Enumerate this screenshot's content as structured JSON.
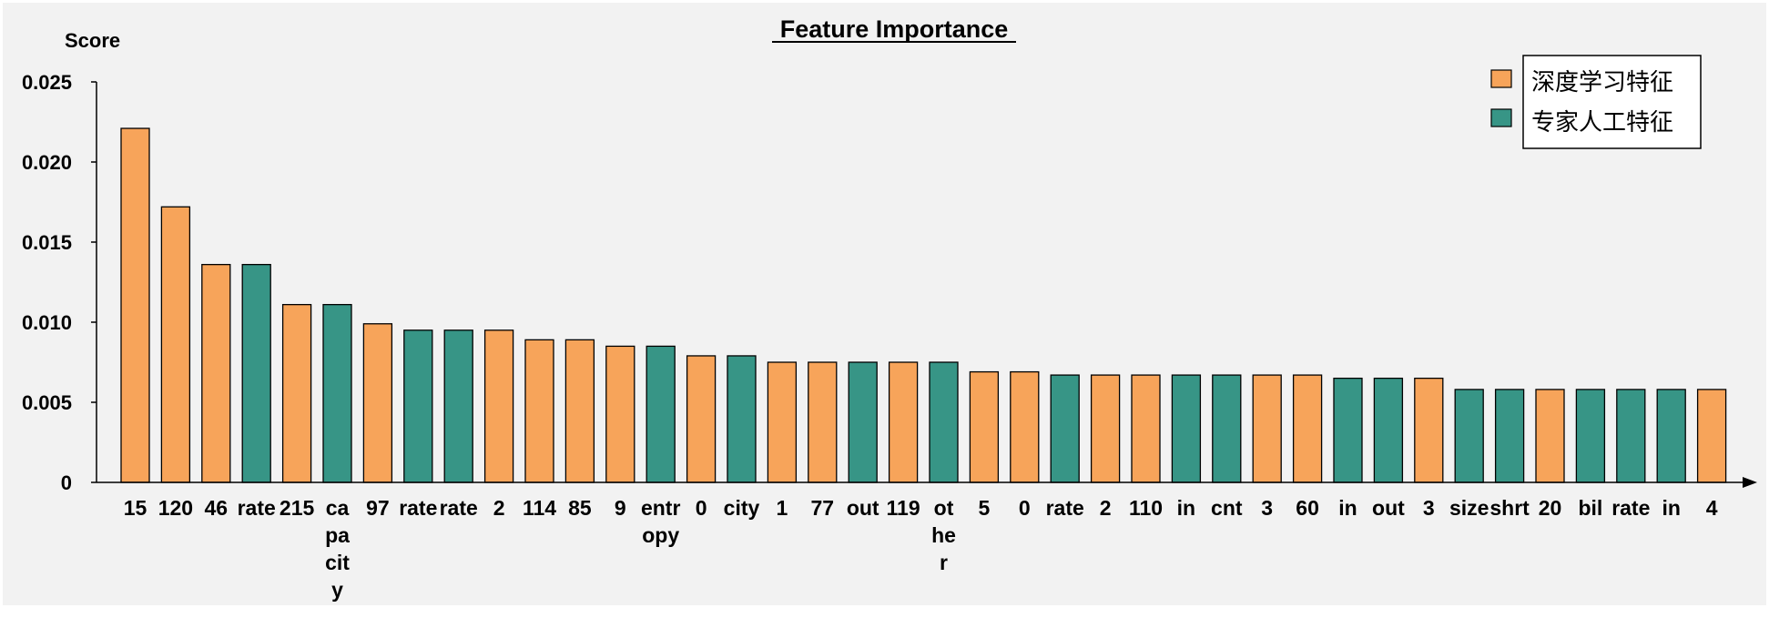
{
  "chart_data": {
    "type": "bar",
    "title": "Feature Importance",
    "xlabel": "",
    "ylabel": "Score",
    "ylim": [
      0,
      0.025
    ],
    "yticks": [
      "0",
      "0.005",
      "0.010",
      "0.015",
      "0.020",
      "0.025"
    ],
    "categories": [
      "15",
      "120",
      "46",
      "rate",
      "215",
      "ca\npa\ncit\ny",
      "97",
      "rate",
      "rate",
      "2",
      "114",
      "85",
      "9",
      "entr\nopy",
      "0",
      "city",
      "1",
      "77",
      "out",
      "119",
      "ot\nhe\nr",
      "5",
      "0",
      "rate",
      "2",
      "110",
      "in",
      "cnt",
      "3",
      "60",
      "in",
      "out",
      "3",
      "size",
      "shrt",
      "20",
      "bil",
      "rate",
      "in",
      "4"
    ],
    "values": [
      0.0221,
      0.0172,
      0.0136,
      0.0136,
      0.0111,
      0.0111,
      0.0099,
      0.0095,
      0.0095,
      0.0095,
      0.0089,
      0.0089,
      0.0085,
      0.0085,
      0.0079,
      0.0079,
      0.0075,
      0.0075,
      0.0075,
      0.0075,
      0.0075,
      0.0069,
      0.0069,
      0.0067,
      0.0067,
      0.0067,
      0.0067,
      0.0067,
      0.0067,
      0.0067,
      0.0065,
      0.0065,
      0.0065,
      0.0058,
      0.0058,
      0.0058,
      0.0058,
      0.0058,
      0.0058,
      0.0058
    ],
    "groups": [
      "deep",
      "deep",
      "deep",
      "expert",
      "deep",
      "expert",
      "deep",
      "expert",
      "expert",
      "deep",
      "deep",
      "deep",
      "deep",
      "expert",
      "deep",
      "expert",
      "deep",
      "deep",
      "expert",
      "deep",
      "expert",
      "deep",
      "deep",
      "expert",
      "deep",
      "deep",
      "expert",
      "expert",
      "deep",
      "deep",
      "expert",
      "expert",
      "deep",
      "expert",
      "expert",
      "deep",
      "expert",
      "expert",
      "expert",
      "deep"
    ],
    "series": [
      {
        "key": "deep",
        "name": "深度学习特征",
        "color": "#F7A45A"
      },
      {
        "key": "expert",
        "name": "专家人工特征",
        "color": "#379586"
      }
    ],
    "grid": false,
    "legend_position": "top-right"
  },
  "colors": {
    "background": "#F2F2F2",
    "bar_outline": "#000000",
    "axis": "#000000"
  }
}
